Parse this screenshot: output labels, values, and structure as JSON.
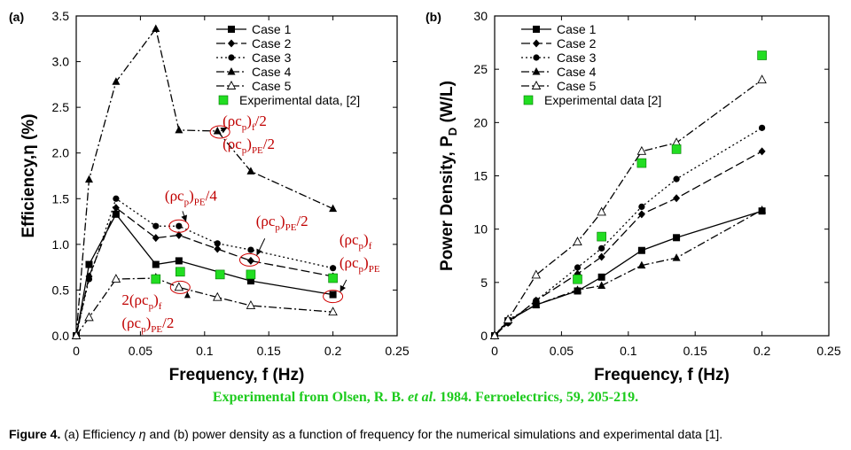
{
  "chart_data": [
    {
      "panel_label": "(a)",
      "type": "line",
      "xlabel": "Frequency, f (Hz)",
      "ylabel": "Efficiency,η (%)",
      "xlim": [
        0,
        0.25
      ],
      "ylim": [
        0,
        3.5
      ],
      "xticks": [
        "0",
        "0.05",
        "0.1",
        "0.15",
        "0.2",
        "0.25"
      ],
      "yticks": [
        "0.0",
        "0.5",
        "1.0",
        "1.5",
        "2.0",
        "2.5",
        "3.0",
        "3.5"
      ],
      "legend_position": "top-right",
      "series": [
        {
          "name": "Case 1",
          "color": "#000000",
          "dash": "solid",
          "marker": "square",
          "points": [
            [
              0,
              0
            ],
            [
              0.01,
              0.78
            ],
            [
              0.031,
              1.33
            ],
            [
              0.062,
              0.78
            ],
            [
              0.08,
              0.82
            ],
            [
              0.136,
              0.6
            ],
            [
              0.2,
              0.45
            ]
          ]
        },
        {
          "name": "Case 2",
          "color": "#000000",
          "dash": "longdash",
          "marker": "diamond",
          "points": [
            [
              0,
              0
            ],
            [
              0.01,
              0.65
            ],
            [
              0.031,
              1.4
            ],
            [
              0.062,
              1.07
            ],
            [
              0.08,
              1.1
            ],
            [
              0.11,
              0.95
            ],
            [
              0.136,
              0.82
            ],
            [
              0.2,
              0.65
            ]
          ]
        },
        {
          "name": "Case 3",
          "color": "#000000",
          "dash": "dot",
          "marker": "circle",
          "points": [
            [
              0,
              0
            ],
            [
              0.01,
              0.62
            ],
            [
              0.031,
              1.5
            ],
            [
              0.062,
              1.2
            ],
            [
              0.08,
              1.2
            ],
            [
              0.11,
              1.01
            ],
            [
              0.136,
              0.94
            ],
            [
              0.2,
              0.74
            ]
          ]
        },
        {
          "name": "Case 4",
          "color": "#000000",
          "dash": "dashdot",
          "marker": "triangle",
          "points": [
            [
              0,
              0
            ],
            [
              0.01,
              1.71
            ],
            [
              0.031,
              2.78
            ],
            [
              0.062,
              3.36
            ],
            [
              0.08,
              2.25
            ],
            [
              0.11,
              2.24
            ],
            [
              0.136,
              1.8
            ],
            [
              0.2,
              1.39
            ]
          ]
        },
        {
          "name": "Case 5",
          "color": "#000000",
          "dash": "dashdot",
          "marker": "triangle-open",
          "points": [
            [
              0,
              0
            ],
            [
              0.01,
              0.2
            ],
            [
              0.031,
              0.62
            ],
            [
              0.062,
              0.63
            ],
            [
              0.08,
              0.53
            ],
            [
              0.11,
              0.42
            ],
            [
              0.136,
              0.33
            ],
            [
              0.2,
              0.26
            ]
          ]
        },
        {
          "name": "Experimental data, [2]",
          "color": "#22dd22",
          "dash": "none",
          "marker": "square-green",
          "points": [
            [
              0.062,
              0.62
            ],
            [
              0.081,
              0.7
            ],
            [
              0.112,
              0.67
            ],
            [
              0.136,
              0.67
            ],
            [
              0.2,
              0.63
            ]
          ]
        }
      ],
      "annotations": [
        {
          "l1": "(ρc",
          "s1": "p",
          "m": ")",
          "s2": "f",
          "t": "/2",
          "at": [
            0.114,
            2.3
          ],
          "line2": {
            "l1": "(ρc",
            "s1": "p",
            "m": ")",
            "s2": "PE",
            "t": "/2"
          },
          "circle": [
            0.112,
            2.23
          ],
          "arrow_from": [
            0.115,
            2.25
          ]
        },
        {
          "l1": "(ρc",
          "s1": "p",
          "m": ")",
          "s2": "PE",
          "t": "/4",
          "at": [
            0.069,
            1.48
          ],
          "circle": [
            0.08,
            1.2
          ]
        },
        {
          "l1": "(ρc",
          "s1": "p",
          "m": ")",
          "s2": "PE",
          "t": "/2",
          "at": [
            0.14,
            1.2
          ],
          "circle": [
            0.135,
            0.83
          ]
        },
        {
          "l1": "(ρc",
          "s1": "p",
          "m": ")",
          "s2": "f",
          "t": "",
          "at": [
            0.205,
            1.0
          ],
          "line2": {
            "l1": "(ρc",
            "s1": "p",
            "m": ")",
            "s2": "PE",
            "t": ""
          },
          "circle": [
            0.2,
            0.43
          ]
        },
        {
          "l1": "2(ρc",
          "s1": "p",
          "m": ")",
          "s2": "f",
          "t": "",
          "at": [
            0.0355,
            0.34
          ],
          "line2": {
            "l1": "(ρc",
            "s1": "p",
            "m": ")",
            "s2": "PE",
            "t": "/2"
          },
          "circle": [
            0.081,
            0.53
          ]
        }
      ]
    },
    {
      "panel_label": "(b)",
      "type": "line",
      "xlabel": "Frequency, f (Hz)",
      "ylabel": "Power Density, P",
      "ylabel_sub": "D",
      "ylabel_tail": " (W/L)",
      "xlim": [
        0,
        0.25
      ],
      "ylim": [
        0,
        30
      ],
      "xticks": [
        "0",
        "0.05",
        "0.1",
        "0.15",
        "0.2",
        "0.25"
      ],
      "yticks": [
        "0",
        "5",
        "10",
        "15",
        "20",
        "25",
        "30"
      ],
      "legend_position": "top-left",
      "series": [
        {
          "name": "Case 1",
          "color": "#000000",
          "dash": "solid",
          "marker": "square",
          "points": [
            [
              0,
              0
            ],
            [
              0.01,
              1.4
            ],
            [
              0.031,
              2.9
            ],
            [
              0.062,
              4.2
            ],
            [
              0.08,
              5.5
            ],
            [
              0.11,
              8.0
            ],
            [
              0.136,
              9.2
            ],
            [
              0.2,
              11.7
            ]
          ]
        },
        {
          "name": "Case 2",
          "color": "#000000",
          "dash": "longdash",
          "marker": "diamond",
          "points": [
            [
              0,
              0
            ],
            [
              0.01,
              1.2
            ],
            [
              0.031,
              3.3
            ],
            [
              0.062,
              5.8
            ],
            [
              0.08,
              7.4
            ],
            [
              0.11,
              11.4
            ],
            [
              0.136,
              12.9
            ],
            [
              0.2,
              17.3
            ]
          ]
        },
        {
          "name": "Case 3",
          "color": "#000000",
          "dash": "dot",
          "marker": "circle",
          "points": [
            [
              0,
              0
            ],
            [
              0.01,
              1.2
            ],
            [
              0.031,
              3.3
            ],
            [
              0.062,
              6.4
            ],
            [
              0.08,
              8.2
            ],
            [
              0.11,
              12.1
            ],
            [
              0.136,
              14.7
            ],
            [
              0.2,
              19.5
            ]
          ]
        },
        {
          "name": "Case 4",
          "color": "#000000",
          "dash": "dashdot",
          "marker": "triangle",
          "points": [
            [
              0,
              0
            ],
            [
              0.01,
              1.5
            ],
            [
              0.031,
              2.9
            ],
            [
              0.062,
              4.3
            ],
            [
              0.08,
              4.7
            ],
            [
              0.11,
              6.6
            ],
            [
              0.136,
              7.3
            ],
            [
              0.2,
              11.8
            ]
          ]
        },
        {
          "name": "Case 5",
          "color": "#000000",
          "dash": "dashdot",
          "marker": "triangle-open",
          "points": [
            [
              0,
              0
            ],
            [
              0.01,
              1.5
            ],
            [
              0.031,
              5.7
            ],
            [
              0.062,
              8.8
            ],
            [
              0.08,
              11.6
            ],
            [
              0.11,
              17.3
            ],
            [
              0.136,
              18.1
            ],
            [
              0.2,
              24.0
            ]
          ]
        },
        {
          "name": "Experimental data [2]",
          "color": "#22dd22",
          "dash": "none",
          "marker": "square-green",
          "points": [
            [
              0.062,
              5.3
            ],
            [
              0.08,
              9.3
            ],
            [
              0.11,
              16.2
            ],
            [
              0.136,
              17.5
            ],
            [
              0.2,
              26.3
            ]
          ]
        }
      ]
    }
  ],
  "source_note": "Experimental from Olsen, R. B. et al. 1984. Ferroelectrics, 59, 205-219.",
  "source_parts": {
    "a": "Experimental from Olsen, R. B. ",
    "b": "et al",
    "c": ". 1984. Ferroelectrics, 59, 205-219."
  },
  "caption": {
    "label": "Figure 4.",
    "text_a": " (a) Efficiency ",
    "eta": "η",
    "text_b": " and (b) power density as a function of frequency for the numerical simulations and experimental data [1]."
  }
}
